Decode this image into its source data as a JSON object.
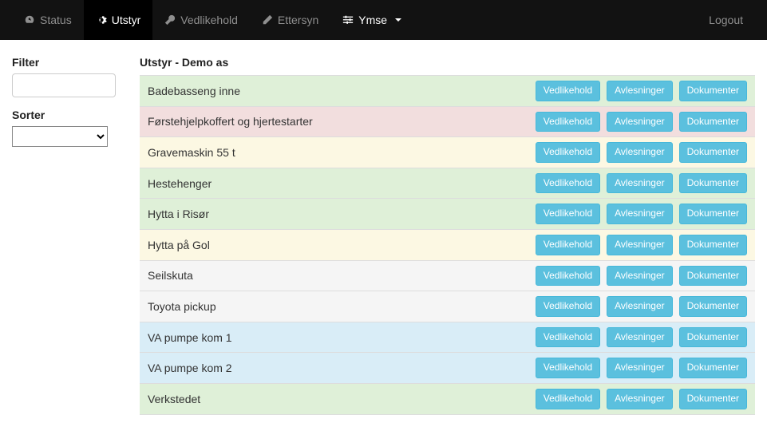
{
  "nav": {
    "status": "Status",
    "utstyr": "Utstyr",
    "vedlikehold": "Vedlikehold",
    "ettersyn": "Ettersyn",
    "ymse": "Ymse",
    "logout": "Logout"
  },
  "sidebar": {
    "filter_label": "Filter",
    "filter_value": "",
    "sorter_label": "Sorter",
    "sorter_value": ""
  },
  "page": {
    "title": "Utstyr - Demo as"
  },
  "buttons": {
    "vedlikehold": "Vedlikehold",
    "avlesninger": "Avlesninger",
    "dokumenter": "Dokumenter"
  },
  "row_colors": {
    "green": "#dff0d8",
    "red": "#f2dede",
    "yellow": "#fcf8e3",
    "grey": "#f5f5f5",
    "blue": "#d9edf7",
    "border": "#dddddd"
  },
  "equipment": [
    {
      "name": "Badebasseng inne",
      "color": "green"
    },
    {
      "name": "Førstehjelpkoffert og hjertestarter",
      "color": "red"
    },
    {
      "name": "Gravemaskin 55 t",
      "color": "yellow"
    },
    {
      "name": "Hestehenger",
      "color": "green"
    },
    {
      "name": "Hytta i Risør",
      "color": "green"
    },
    {
      "name": "Hytta på Gol",
      "color": "yellow"
    },
    {
      "name": "Seilskuta",
      "color": "grey"
    },
    {
      "name": "Toyota pickup",
      "color": "grey"
    },
    {
      "name": "VA pumpe kom 1",
      "color": "blue"
    },
    {
      "name": "VA pumpe kom 2",
      "color": "blue"
    },
    {
      "name": "Verkstedet",
      "color": "green"
    }
  ]
}
